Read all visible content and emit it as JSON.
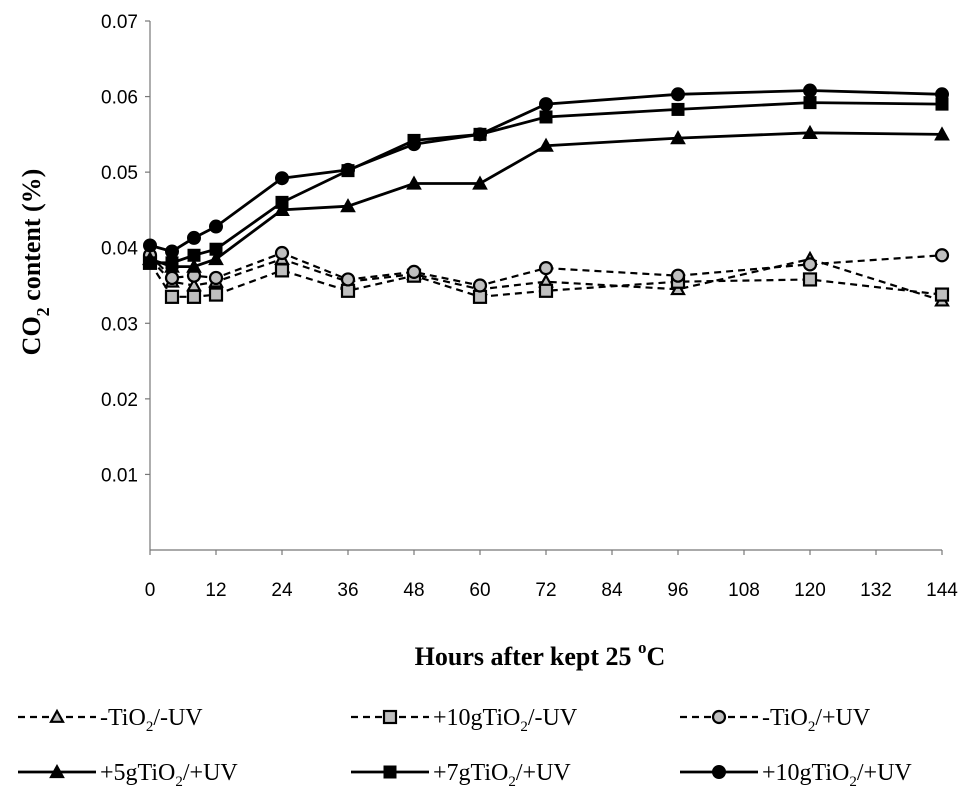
{
  "chart_data": {
    "type": "line",
    "xlabel": {
      "main": "Hours after kept 25 ",
      "sup": "o",
      "tail": "C"
    },
    "ylabel": {
      "main": "CO",
      "sub": "2",
      "tail": " content (%)"
    },
    "xlim": [
      0,
      144
    ],
    "ylim": [
      0,
      0.07
    ],
    "xticks": [
      0,
      12,
      24,
      36,
      48,
      60,
      72,
      84,
      96,
      108,
      120,
      132,
      144
    ],
    "yticks": [
      0.01,
      0.02,
      0.03,
      0.04,
      0.05,
      0.06,
      0.07
    ],
    "grid": false,
    "legend_position": "bottom",
    "x": [
      0,
      4,
      8,
      12,
      24,
      36,
      48,
      60,
      72,
      96,
      120,
      144
    ],
    "series": [
      {
        "name": "-TiO2/-UV",
        "label_parts": [
          "-TiO",
          "2",
          "/-UV"
        ],
        "marker": "triangle-open",
        "dashed": true,
        "values": [
          0.0385,
          0.0355,
          0.035,
          0.0355,
          0.0385,
          0.0355,
          0.0365,
          0.0345,
          0.0355,
          0.0345,
          0.0385,
          0.033
        ]
      },
      {
        "name": "+10gTiO2/-UV",
        "label_parts": [
          "+10gTiO",
          "2",
          "/-UV"
        ],
        "marker": "square-open",
        "dashed": true,
        "values": [
          0.038,
          0.0335,
          0.0335,
          0.0338,
          0.037,
          0.0343,
          0.0363,
          0.0335,
          0.0343,
          0.0355,
          0.0358,
          0.0338
        ]
      },
      {
        "name": "-TiO2/+UV",
        "label_parts": [
          "-TiO",
          "2",
          "/+UV"
        ],
        "marker": "circle-open",
        "dashed": true,
        "values": [
          0.039,
          0.036,
          0.0363,
          0.036,
          0.0393,
          0.0358,
          0.0368,
          0.035,
          0.0373,
          0.0363,
          0.0378,
          0.039
        ]
      },
      {
        "name": "+5gTiO2/+UV",
        "label_parts": [
          "+5gTiO",
          "2",
          "/+UV"
        ],
        "marker": "triangle-filled",
        "dashed": false,
        "values": [
          0.0385,
          0.0375,
          0.0375,
          0.0385,
          0.045,
          0.0455,
          0.0485,
          0.0485,
          0.0535,
          0.0545,
          0.0552,
          0.055
        ]
      },
      {
        "name": "+7gTiO2/+UV",
        "label_parts": [
          "+7gTiO",
          "2",
          "/+UV"
        ],
        "marker": "square-filled",
        "dashed": false,
        "values": [
          0.038,
          0.038,
          0.039,
          0.0398,
          0.046,
          0.0502,
          0.0542,
          0.055,
          0.0573,
          0.0583,
          0.0592,
          0.059
        ]
      },
      {
        "name": "+10gTiO2/+UV",
        "label_parts": [
          "+10gTiO",
          "2",
          "/+UV"
        ],
        "marker": "circle-filled",
        "dashed": false,
        "values": [
          0.0403,
          0.0395,
          0.0413,
          0.0428,
          0.0492,
          0.0503,
          0.0537,
          0.055,
          0.059,
          0.0603,
          0.0608,
          0.0603
        ]
      }
    ]
  }
}
